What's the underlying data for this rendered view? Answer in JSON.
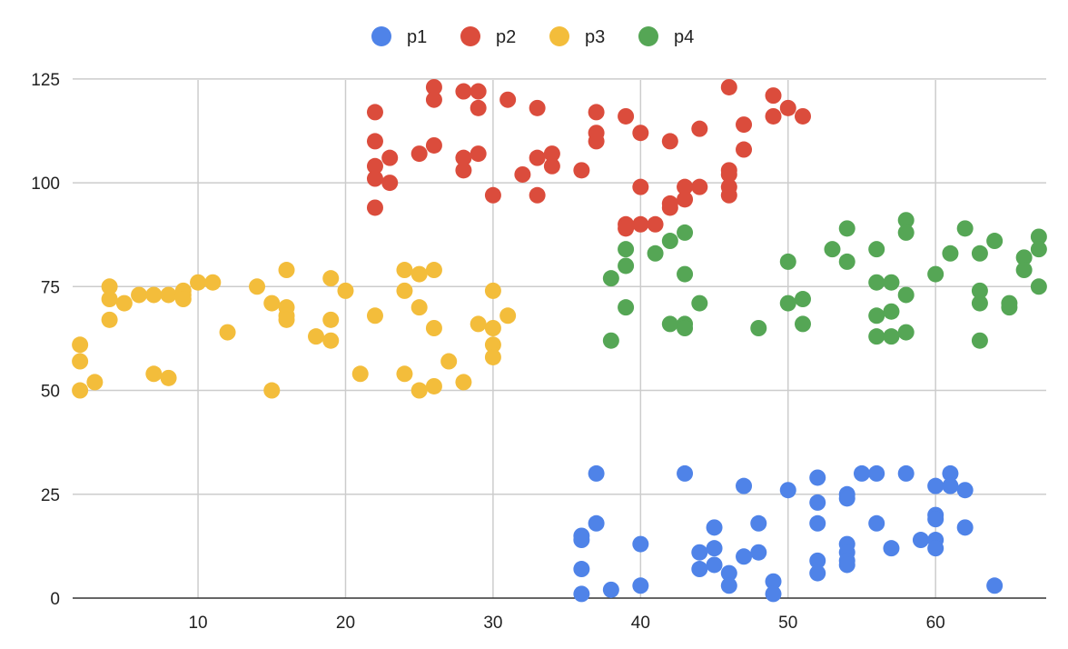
{
  "chart_data": {
    "type": "scatter",
    "title": "",
    "xlabel": "",
    "ylabel": "",
    "xlim": [
      1.5,
      67.5
    ],
    "ylim": [
      0,
      130
    ],
    "x_ticks": [
      10,
      20,
      30,
      40,
      50,
      60
    ],
    "y_ticks": [
      0,
      25,
      50,
      75,
      100,
      125
    ],
    "grid": true,
    "legend_position": "top-center",
    "series": [
      {
        "name": "p1",
        "color": "#4f83e8",
        "points": [
          [
            36,
            15
          ],
          [
            36,
            14
          ],
          [
            36,
            7
          ],
          [
            36,
            1
          ],
          [
            37,
            30
          ],
          [
            37,
            18
          ],
          [
            38,
            2
          ],
          [
            40,
            13
          ],
          [
            40,
            3
          ],
          [
            43,
            30
          ],
          [
            44,
            11
          ],
          [
            44,
            7
          ],
          [
            45,
            17
          ],
          [
            45,
            12
          ],
          [
            45,
            8
          ],
          [
            46,
            6
          ],
          [
            46,
            3
          ],
          [
            47,
            27
          ],
          [
            47,
            10
          ],
          [
            48,
            18
          ],
          [
            48,
            11
          ],
          [
            49,
            4
          ],
          [
            49,
            1
          ],
          [
            50,
            26
          ],
          [
            52,
            29
          ],
          [
            52,
            23
          ],
          [
            52,
            18
          ],
          [
            52,
            9
          ],
          [
            52,
            6
          ],
          [
            54,
            25
          ],
          [
            54,
            24
          ],
          [
            54,
            13
          ],
          [
            54,
            11
          ],
          [
            54,
            9
          ],
          [
            54,
            8
          ],
          [
            55,
            30
          ],
          [
            56,
            30
          ],
          [
            56,
            18
          ],
          [
            57,
            12
          ],
          [
            58,
            30
          ],
          [
            59,
            14
          ],
          [
            60,
            27
          ],
          [
            60,
            20
          ],
          [
            60,
            19
          ],
          [
            60,
            14
          ],
          [
            60,
            12
          ],
          [
            61,
            30
          ],
          [
            61,
            27
          ],
          [
            62,
            26
          ],
          [
            62,
            17
          ],
          [
            64,
            3
          ]
        ]
      },
      {
        "name": "p2",
        "color": "#db4c3c",
        "points": [
          [
            22,
            117
          ],
          [
            22,
            110
          ],
          [
            22,
            104
          ],
          [
            22,
            101
          ],
          [
            22,
            94
          ],
          [
            23,
            106
          ],
          [
            23,
            100
          ],
          [
            25,
            107
          ],
          [
            26,
            123
          ],
          [
            26,
            120
          ],
          [
            26,
            109
          ],
          [
            28,
            122
          ],
          [
            28,
            106
          ],
          [
            28,
            103
          ],
          [
            29,
            122
          ],
          [
            29,
            118
          ],
          [
            29,
            107
          ],
          [
            30,
            97
          ],
          [
            31,
            120
          ],
          [
            32,
            102
          ],
          [
            33,
            118
          ],
          [
            33,
            106
          ],
          [
            33,
            97
          ],
          [
            34,
            107
          ],
          [
            34,
            104
          ],
          [
            36,
            103
          ],
          [
            37,
            117
          ],
          [
            37,
            112
          ],
          [
            37,
            110
          ],
          [
            39,
            116
          ],
          [
            39,
            90
          ],
          [
            39,
            89
          ],
          [
            40,
            112
          ],
          [
            40,
            99
          ],
          [
            40,
            90
          ],
          [
            41,
            90
          ],
          [
            42,
            110
          ],
          [
            42,
            95
          ],
          [
            42,
            94
          ],
          [
            43,
            99
          ],
          [
            43,
            96
          ],
          [
            44,
            113
          ],
          [
            44,
            99
          ],
          [
            46,
            123
          ],
          [
            46,
            103
          ],
          [
            46,
            102
          ],
          [
            46,
            99
          ],
          [
            46,
            97
          ],
          [
            47,
            114
          ],
          [
            47,
            108
          ],
          [
            49,
            121
          ],
          [
            49,
            116
          ],
          [
            50,
            118
          ],
          [
            51,
            116
          ]
        ]
      },
      {
        "name": "p3",
        "color": "#f3bd3b",
        "points": [
          [
            2,
            61
          ],
          [
            2,
            57
          ],
          [
            2,
            50
          ],
          [
            3,
            52
          ],
          [
            4,
            75
          ],
          [
            4,
            72
          ],
          [
            4,
            67
          ],
          [
            5,
            71
          ],
          [
            6,
            73
          ],
          [
            7,
            73
          ],
          [
            7,
            54
          ],
          [
            8,
            73
          ],
          [
            8,
            53
          ],
          [
            9,
            74
          ],
          [
            9,
            73
          ],
          [
            9,
            72
          ],
          [
            10,
            76
          ],
          [
            11,
            76
          ],
          [
            12,
            64
          ],
          [
            14,
            75
          ],
          [
            15,
            71
          ],
          [
            15,
            50
          ],
          [
            16,
            79
          ],
          [
            16,
            70
          ],
          [
            16,
            68
          ],
          [
            16,
            67
          ],
          [
            18,
            63
          ],
          [
            19,
            77
          ],
          [
            19,
            67
          ],
          [
            19,
            62
          ],
          [
            20,
            74
          ],
          [
            21,
            54
          ],
          [
            22,
            68
          ],
          [
            24,
            79
          ],
          [
            24,
            74
          ],
          [
            24,
            54
          ],
          [
            25,
            78
          ],
          [
            25,
            70
          ],
          [
            25,
            50
          ],
          [
            26,
            79
          ],
          [
            26,
            65
          ],
          [
            26,
            51
          ],
          [
            27,
            57
          ],
          [
            28,
            52
          ],
          [
            29,
            66
          ],
          [
            30,
            74
          ],
          [
            30,
            65
          ],
          [
            30,
            61
          ],
          [
            30,
            58
          ],
          [
            31,
            68
          ]
        ]
      },
      {
        "name": "p4",
        "color": "#55a655",
        "points": [
          [
            38,
            77
          ],
          [
            38,
            62
          ],
          [
            39,
            84
          ],
          [
            39,
            80
          ],
          [
            39,
            70
          ],
          [
            41,
            83
          ],
          [
            42,
            86
          ],
          [
            42,
            66
          ],
          [
            43,
            88
          ],
          [
            43,
            78
          ],
          [
            43,
            66
          ],
          [
            43,
            65
          ],
          [
            44,
            71
          ],
          [
            48,
            65
          ],
          [
            50,
            81
          ],
          [
            50,
            71
          ],
          [
            51,
            72
          ],
          [
            51,
            66
          ],
          [
            53,
            84
          ],
          [
            54,
            89
          ],
          [
            54,
            81
          ],
          [
            56,
            84
          ],
          [
            56,
            76
          ],
          [
            56,
            68
          ],
          [
            56,
            63
          ],
          [
            57,
            76
          ],
          [
            57,
            69
          ],
          [
            57,
            63
          ],
          [
            58,
            91
          ],
          [
            58,
            88
          ],
          [
            58,
            73
          ],
          [
            58,
            64
          ],
          [
            60,
            78
          ],
          [
            61,
            83
          ],
          [
            62,
            89
          ],
          [
            63,
            83
          ],
          [
            63,
            74
          ],
          [
            63,
            71
          ],
          [
            63,
            62
          ],
          [
            64,
            86
          ],
          [
            65,
            71
          ],
          [
            65,
            70
          ],
          [
            66,
            82
          ],
          [
            66,
            79
          ],
          [
            67,
            87
          ],
          [
            67,
            84
          ],
          [
            67,
            75
          ]
        ]
      }
    ]
  }
}
